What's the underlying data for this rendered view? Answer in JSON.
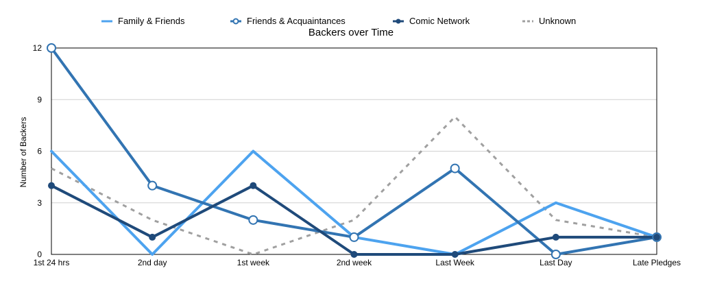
{
  "chart_data": {
    "type": "line",
    "title": "Backers over Time",
    "xlabel": "",
    "ylabel": "Number of Backers",
    "categories": [
      "1st 24 hrs",
      "2nd day",
      "1st week",
      "2nd week",
      "Last Week",
      "Last Day",
      "Late Pledges"
    ],
    "ylim": [
      0,
      12
    ],
    "yticks": [
      0,
      3,
      6,
      9,
      12
    ],
    "grid": true,
    "legend_position": "top",
    "series": [
      {
        "name": "Family & Friends",
        "values": [
          6,
          0,
          6,
          1,
          0,
          3,
          1
        ],
        "color": "#4da3ef",
        "style": "solid",
        "marker": "none"
      },
      {
        "name": "Friends & Acquaintances",
        "values": [
          12,
          4,
          2,
          1,
          5,
          0,
          1
        ],
        "color": "#3274b2",
        "style": "solid",
        "marker": "hollow-circle"
      },
      {
        "name": "Comic Network",
        "values": [
          4,
          1,
          4,
          0,
          0,
          1,
          1
        ],
        "color": "#1f4a7a",
        "style": "solid",
        "marker": "filled-circle"
      },
      {
        "name": "Unknown",
        "values": [
          5,
          2,
          0,
          2,
          8,
          2,
          1
        ],
        "color": "#a0a0a0",
        "style": "dashed",
        "marker": "none"
      }
    ]
  }
}
